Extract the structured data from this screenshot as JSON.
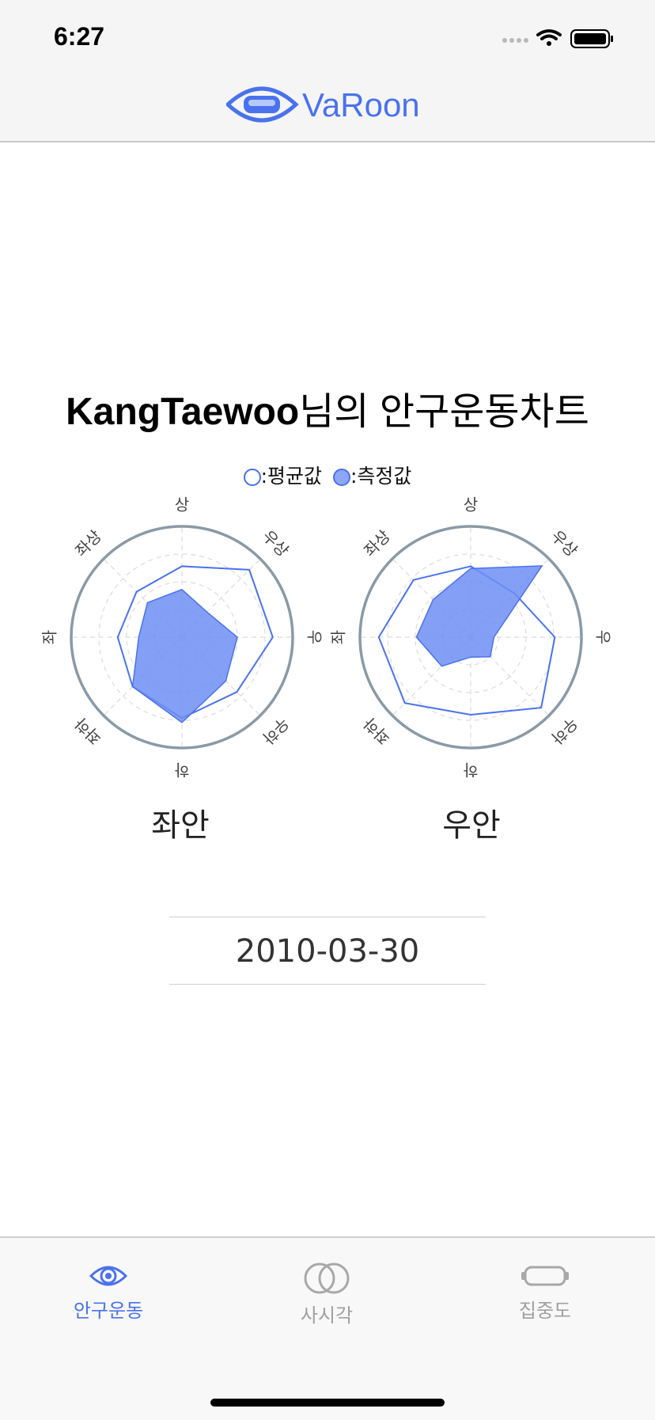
{
  "status_bar": {
    "time": "6:27"
  },
  "nav": {
    "logo_text": "VaRoon"
  },
  "title": {
    "name": "KangTaewoo",
    "suffix": "님의 안구운동차트"
  },
  "legend": {
    "average": ":평균값",
    "measured": ":측정값"
  },
  "colors": {
    "accent": "#4a72ee",
    "measured_fill": "#6f8ef5",
    "axis_ring": "#8a9aa6",
    "inactive": "#a0a0a0"
  },
  "chart_data": [
    {
      "type": "radar",
      "title": "좌안",
      "axes": [
        "상",
        "우상",
        "우",
        "우하",
        "하",
        "좌하",
        "좌",
        "좌상"
      ],
      "range": [
        0,
        1
      ],
      "grid": true,
      "series": [
        {
          "name": "평균값",
          "values": [
            0.64,
            0.86,
            0.82,
            0.7,
            0.73,
            0.63,
            0.58,
            0.58
          ]
        },
        {
          "name": "측정값",
          "values": [
            0.43,
            0.32,
            0.5,
            0.56,
            0.77,
            0.63,
            0.39,
            0.44
          ]
        }
      ]
    },
    {
      "type": "radar",
      "title": "우안",
      "axes": [
        "상",
        "우상",
        "우",
        "우하",
        "하",
        "좌하",
        "좌",
        "좌상"
      ],
      "range": [
        0,
        1
      ],
      "grid": true,
      "series": [
        {
          "name": "평균값",
          "values": [
            0.64,
            0.56,
            0.76,
            0.9,
            0.7,
            0.84,
            0.83,
            0.73
          ]
        },
        {
          "name": "측정값",
          "values": [
            0.62,
            0.91,
            0.21,
            0.25,
            0.18,
            0.37,
            0.49,
            0.48
          ]
        }
      ]
    }
  ],
  "eyes": {
    "left": "좌안",
    "right": "우안"
  },
  "date": "2010-03-30",
  "tabs": [
    {
      "label": "안구운동",
      "icon": "eye-icon",
      "active": true
    },
    {
      "label": "사시각",
      "icon": "overlapping-circles-icon",
      "active": false
    },
    {
      "label": "집중도",
      "icon": "vr-headset-icon",
      "active": false
    }
  ]
}
